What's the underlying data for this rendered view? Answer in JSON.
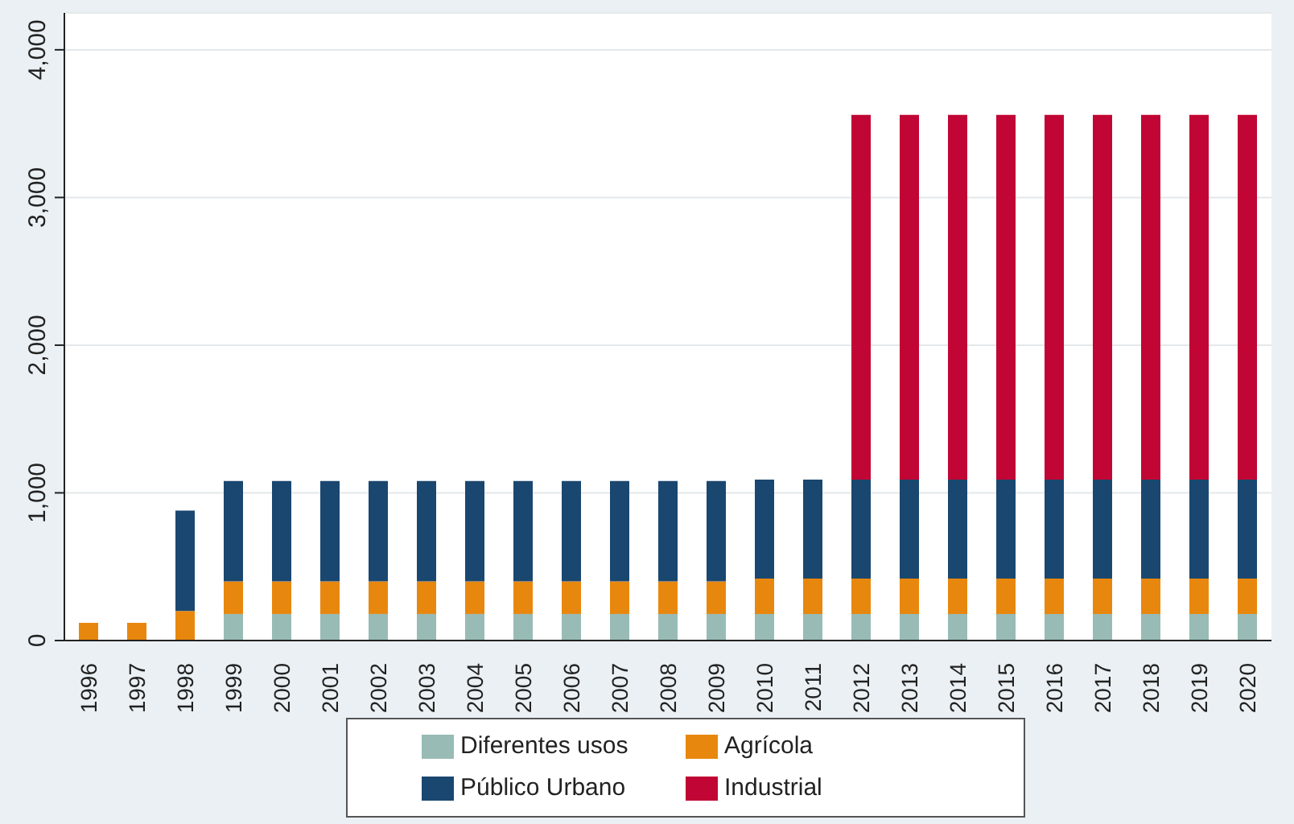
{
  "chart_data": {
    "type": "bar",
    "stacked": true,
    "categories": [
      "1996",
      "1997",
      "1998",
      "1999",
      "2000",
      "2001",
      "2002",
      "2003",
      "2004",
      "2005",
      "2006",
      "2007",
      "2008",
      "2009",
      "2010",
      "2011",
      "2012",
      "2013",
      "2014",
      "2015",
      "2016",
      "2017",
      "2018",
      "2019",
      "2020"
    ],
    "series": [
      {
        "name": "Diferentes usos",
        "color": "#98bbb5",
        "values": [
          null,
          null,
          null,
          180,
          180,
          180,
          180,
          180,
          180,
          180,
          180,
          180,
          180,
          180,
          180,
          180,
          180,
          180,
          180,
          180,
          180,
          180,
          180,
          180,
          180
        ]
      },
      {
        "name": "Agrícola",
        "color": "#e8870e",
        "values": [
          120,
          120,
          200,
          220,
          220,
          220,
          220,
          220,
          220,
          220,
          220,
          220,
          220,
          220,
          240,
          240,
          240,
          240,
          240,
          240,
          240,
          240,
          240,
          240,
          240
        ]
      },
      {
        "name": "Público Urbano",
        "color": "#1a476f",
        "values": [
          null,
          null,
          680,
          680,
          680,
          680,
          680,
          680,
          680,
          680,
          680,
          680,
          680,
          680,
          670,
          670,
          670,
          670,
          670,
          670,
          670,
          670,
          670,
          670,
          670
        ]
      },
      {
        "name": "Industrial",
        "color": "#c10534",
        "values": [
          null,
          null,
          null,
          null,
          null,
          null,
          null,
          null,
          null,
          null,
          null,
          null,
          null,
          null,
          null,
          null,
          2470,
          2470,
          2470,
          2470,
          2470,
          2470,
          2470,
          2470,
          2470
        ]
      }
    ],
    "ylim": [
      0,
      4250
    ],
    "yticks": [
      {
        "value": 0,
        "label": "0"
      },
      {
        "value": 1000,
        "label": "1,000"
      },
      {
        "value": 2000,
        "label": "2,000"
      },
      {
        "value": 3000,
        "label": "3,000"
      },
      {
        "value": 4000,
        "label": "4,000"
      }
    ],
    "grid": "y",
    "legend": "bottom"
  }
}
